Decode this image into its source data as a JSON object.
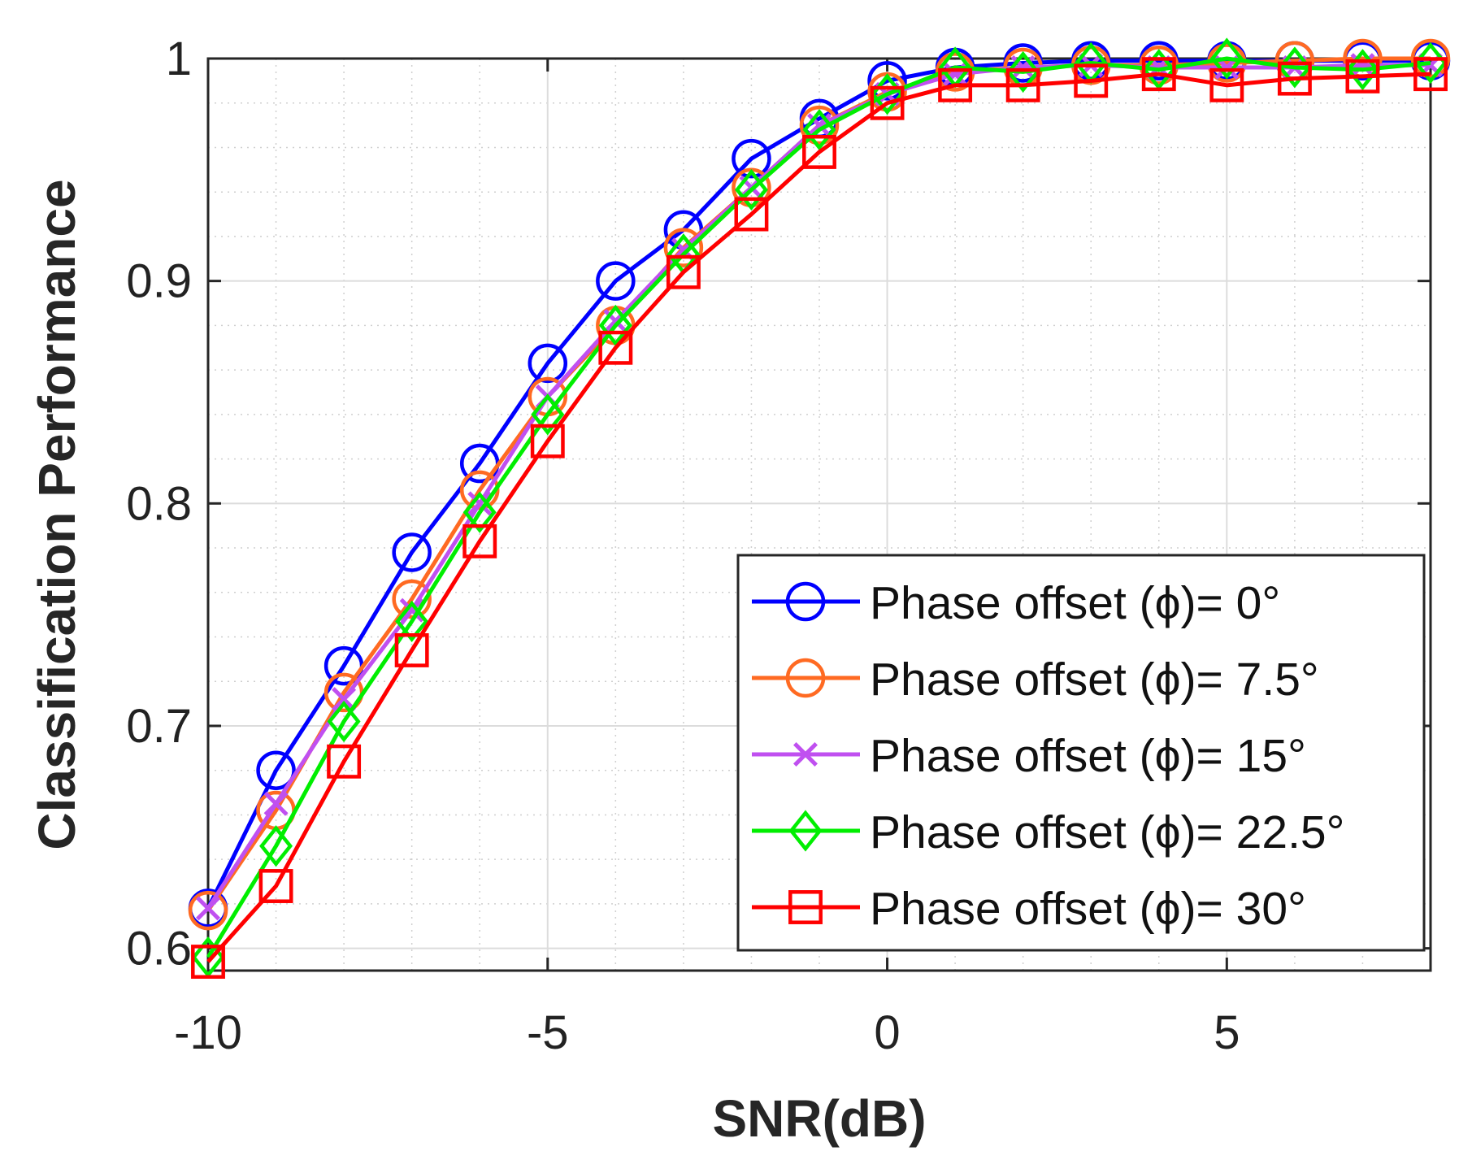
{
  "chart_data": {
    "type": "line",
    "title": "",
    "xlabel": "SNR(dB)",
    "ylabel": "Classification Performance",
    "xlim": [
      -10,
      8
    ],
    "ylim": [
      0.59,
      1.0
    ],
    "xticks": [
      -10,
      -5,
      0,
      5
    ],
    "yticks": [
      0.6,
      0.7,
      0.8,
      0.9,
      1.0
    ],
    "xtick_labels": [
      "-10",
      "-5",
      "0",
      "5"
    ],
    "ytick_labels": [
      "0.6",
      "0.7",
      "0.8",
      "0.9",
      "1"
    ],
    "grid": true,
    "minor_grid": true,
    "legend_position": "bottom-right",
    "x": [
      -10,
      -9,
      -8,
      -7,
      -6,
      -5,
      -4,
      -3,
      -2,
      -1,
      0,
      1,
      2,
      3,
      4,
      5,
      6,
      7,
      8
    ],
    "series": [
      {
        "name": "Phase offset (ϕ)= 0°",
        "color": "#0000ff",
        "marker": "circle",
        "values": [
          0.618,
          0.68,
          0.727,
          0.778,
          0.818,
          0.863,
          0.9,
          0.923,
          0.955,
          0.973,
          0.99,
          0.996,
          0.998,
          0.999,
          0.999,
          0.999,
          0.999,
          0.999,
          0.999
        ]
      },
      {
        "name": "Phase offset (ϕ)= 7.5°",
        "color": "#ff6a22",
        "marker": "circle",
        "values": [
          0.617,
          0.662,
          0.715,
          0.757,
          0.806,
          0.848,
          0.88,
          0.915,
          0.942,
          0.97,
          0.985,
          0.994,
          0.996,
          0.997,
          0.997,
          0.998,
          0.999,
          1.0,
          1.0
        ]
      },
      {
        "name": "Phase offset (ϕ)= 15°",
        "color": "#c050f0",
        "marker": "x",
        "values": [
          0.618,
          0.665,
          0.712,
          0.752,
          0.8,
          0.848,
          0.882,
          0.914,
          0.942,
          0.97,
          0.984,
          0.993,
          0.996,
          0.997,
          0.996,
          0.996,
          0.996,
          0.997,
          0.997
        ]
      },
      {
        "name": "Phase offset (ϕ)= 22.5°",
        "color": "#00ee00",
        "marker": "diamond",
        "values": [
          0.596,
          0.646,
          0.702,
          0.747,
          0.796,
          0.84,
          0.88,
          0.912,
          0.941,
          0.968,
          0.984,
          0.996,
          0.994,
          0.998,
          0.995,
          1.0,
          0.996,
          0.995,
          0.998
        ]
      },
      {
        "name": "Phase offset (ϕ)= 30°",
        "color": "#ff0000",
        "marker": "square",
        "values": [
          0.594,
          0.628,
          0.684,
          0.734,
          0.783,
          0.828,
          0.87,
          0.904,
          0.93,
          0.958,
          0.98,
          0.988,
          0.988,
          0.99,
          0.993,
          0.988,
          0.991,
          0.992,
          0.993
        ]
      }
    ]
  }
}
